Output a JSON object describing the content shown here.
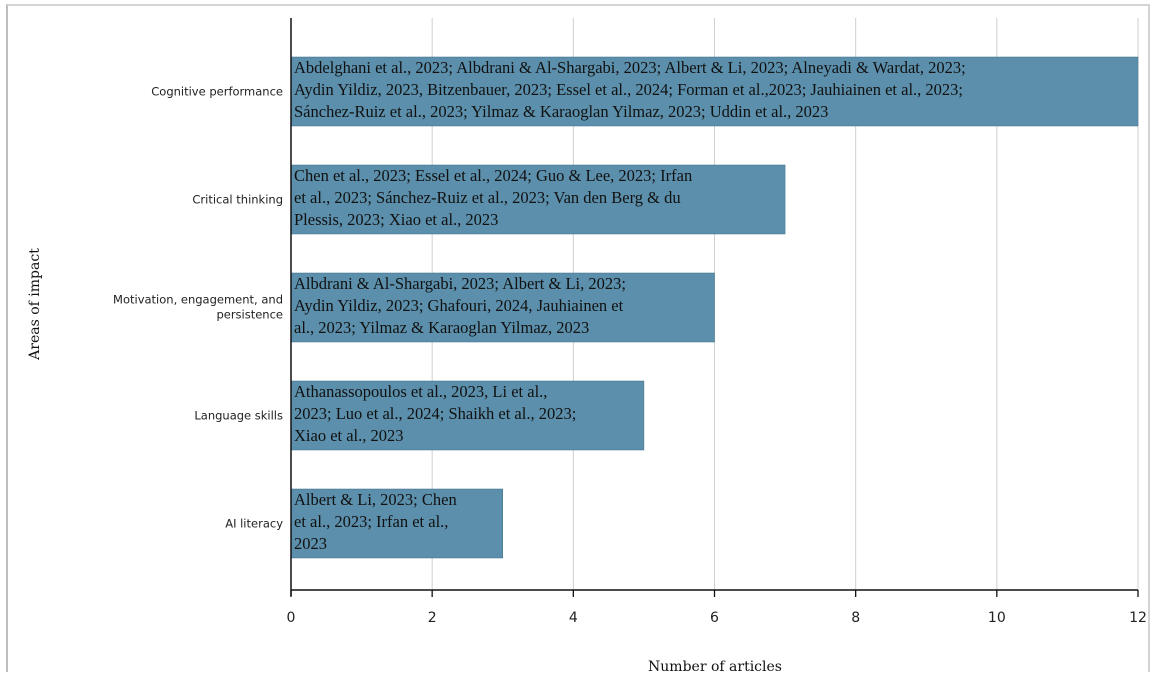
{
  "chart_data": {
    "type": "bar",
    "orientation": "horizontal",
    "xlabel": "Number of articles",
    "ylabel": "Areas of impact",
    "xlim": [
      0,
      12
    ],
    "xticks": [
      0,
      2,
      4,
      6,
      8,
      10,
      12
    ],
    "grid": "vertical",
    "bar_color": "#5b8fab",
    "categories": [
      "Cognitive performance",
      "Critical thinking",
      "Motivation, engagement, and persistence",
      "Language skills",
      "AI literacy"
    ],
    "values": [
      12,
      7,
      6,
      5,
      3
    ],
    "bar_labels": [
      [
        "Abdelghani et al., 2023; Albdrani & Al-Shargabi, 2023; Albert & Li, 2023; Alneyadi & Wardat, 2023;",
        "Aydin Yildiz, 2023, Bitzenbauer, 2023; Essel et al., 2024; Forman et al.,2023; Jauhiainen et al., 2023;",
        "Sánchez-Ruiz et al., 2023; Yilmaz & Karaoglan Yilmaz, 2023; Uddin et al., 2023"
      ],
      [
        "Chen et al., 2023; Essel et al., 2024; Guo & Lee, 2023; Irfan",
        "et al., 2023; Sánchez-Ruiz et al., 2023; Van den Berg & du",
        "Plessis, 2023; Xiao et al., 2023"
      ],
      [
        "Albdrani & Al-Shargabi, 2023; Albert & Li, 2023;",
        "Aydin Yildiz, 2023; Ghafouri, 2024, Jauhiainen et",
        "al., 2023; Yilmaz & Karaoglan Yilmaz, 2023"
      ],
      [
        "Athanassopoulos et al., 2023, Li et al.,",
        "2023; Luo et al., 2024; Shaikh et al., 2023;",
        "Xiao et al., 2023"
      ],
      [
        "Albert & Li, 2023; Chen",
        "et al., 2023; Irfan et al.,",
        "2023"
      ]
    ]
  }
}
